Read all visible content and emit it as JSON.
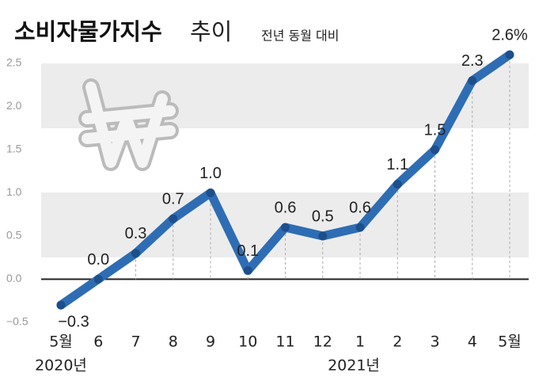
{
  "chart_data": {
    "type": "line",
    "title": "소비자물가지수",
    "title_suffix": "추이",
    "subtitle": "전년 동월 대비",
    "categories": [
      "5월",
      "6",
      "7",
      "8",
      "9",
      "10",
      "11",
      "12",
      "1",
      "2",
      "3",
      "4",
      "5월"
    ],
    "year_labels": [
      "2020년",
      null,
      null,
      null,
      null,
      null,
      null,
      null,
      "2021년",
      null,
      null,
      null,
      null
    ],
    "series": [
      {
        "name": "소비자물가지수",
        "color": "#2e6db4",
        "values": [
          -0.3,
          0.0,
          0.3,
          0.7,
          1.0,
          0.1,
          0.6,
          0.5,
          0.6,
          1.1,
          1.5,
          2.3,
          2.6
        ],
        "value_labels": [
          "−0.3",
          "0.0",
          "0.3",
          "0.7",
          "1.0",
          "0.1",
          "0.6",
          "0.5",
          "0.6",
          "1.1",
          "1.5",
          "2.3",
          "2.6%"
        ]
      }
    ],
    "ylim": [
      -0.5,
      2.5
    ],
    "yticks": [
      {
        "value": -0.5,
        "label": "−0.5"
      },
      {
        "value": 0,
        "label": "0.0"
      },
      {
        "value": 0.5,
        "label": "0.5"
      },
      {
        "value": 1,
        "label": "1.0"
      },
      {
        "value": 1.5,
        "label": "1.5"
      },
      {
        "value": 2,
        "label": "2.0"
      },
      {
        "value": 2.5,
        "label": "2.5"
      }
    ]
  }
}
